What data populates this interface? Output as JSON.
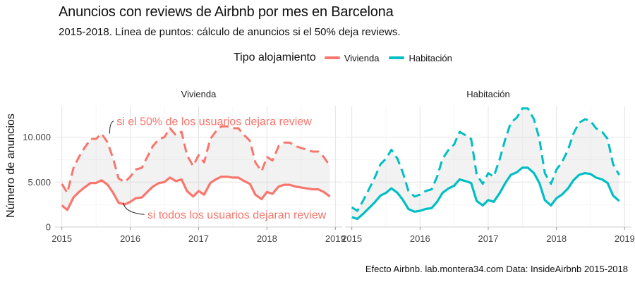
{
  "title": "Anuncios con reviews de Airbnb por mes en Barcelona",
  "subtitle": "2015-2018. Línea de puntos: cálculo de anuncios si el 50% deja reviews.",
  "caption": "Efecto Airbnb. lab.montera34.com Data: InsideAirbnb 2015-2018",
  "legend": {
    "title": "Tipo alojamiento",
    "items": [
      {
        "label": "Vivienda",
        "color": "#F8766D"
      },
      {
        "label": "Habitación",
        "color": "#00BFC4"
      }
    ]
  },
  "chart_data": {
    "type": "line",
    "ylabel": "Número de anuncios",
    "xlabel": "",
    "ylim": [
      0,
      13500
    ],
    "xlim": [
      2014.9,
      2019.1
    ],
    "y_ticks": [
      0,
      5000,
      10000
    ],
    "y_tick_labels": [
      "0",
      "5.000",
      "10.000"
    ],
    "x_ticks": [
      2015,
      2016,
      2017,
      2018,
      2019
    ],
    "x_tick_labels": [
      "2015",
      "2016",
      "2017",
      "2018",
      "2019"
    ],
    "grid": true,
    "legend_position": "top",
    "facets": [
      {
        "label": "Vivienda",
        "color": "#F8766D",
        "x": [
          2015.0,
          2015.08,
          2015.17,
          2015.25,
          2015.33,
          2015.42,
          2015.5,
          2015.58,
          2015.67,
          2015.75,
          2015.83,
          2015.92,
          2016.0,
          2016.08,
          2016.17,
          2016.25,
          2016.33,
          2016.42,
          2016.5,
          2016.58,
          2016.67,
          2016.75,
          2016.83,
          2016.92,
          2017.0,
          2017.08,
          2017.17,
          2017.25,
          2017.33,
          2017.42,
          2017.5,
          2017.58,
          2017.67,
          2017.75,
          2017.83,
          2017.92,
          2018.0,
          2018.08,
          2018.17,
          2018.25,
          2018.33,
          2018.42,
          2018.5,
          2018.58,
          2018.67,
          2018.75,
          2018.83,
          2018.92
        ],
        "series": [
          {
            "name": "Vivienda",
            "values": [
              2400,
              1900,
              3300,
              3900,
              4400,
              4900,
              4900,
              5200,
              4700,
              3800,
              2700,
              2500,
              2800,
              3200,
              3300,
              3900,
              4500,
              4900,
              5000,
              5500,
              5100,
              5300,
              4000,
              3400,
              4000,
              3600,
              4900,
              5300,
              5600,
              5600,
              5500,
              5500,
              5100,
              4800,
              3600,
              3100,
              3900,
              3700,
              4500,
              4700,
              4700,
              4500,
              4400,
              4300,
              4200,
              4200,
              3900,
              3400
            ]
          },
          {
            "name": "si el 50% dejara review",
            "values": [
              4800,
              3800,
              6600,
              7800,
              8800,
              9800,
              9800,
              10400,
              9400,
              7600,
              5400,
              5000,
              5600,
              6400,
              6600,
              7800,
              9000,
              9800,
              10000,
              11000,
              10200,
              10600,
              8000,
              6800,
              8000,
              7200,
              9800,
              10600,
              11200,
              11200,
              11000,
              11000,
              10200,
              9600,
              7200,
              6200,
              7800,
              7400,
              9000,
              9400,
              9400,
              9000,
              8800,
              8600,
              8400,
              8400,
              7800,
              6800
            ]
          }
        ]
      },
      {
        "label": "Habitación",
        "color": "#00BFC4",
        "x": [
          2015.0,
          2015.08,
          2015.17,
          2015.25,
          2015.33,
          2015.42,
          2015.5,
          2015.58,
          2015.67,
          2015.75,
          2015.83,
          2015.92,
          2016.0,
          2016.08,
          2016.17,
          2016.25,
          2016.33,
          2016.42,
          2016.5,
          2016.58,
          2016.67,
          2016.75,
          2016.83,
          2016.92,
          2017.0,
          2017.08,
          2017.17,
          2017.25,
          2017.33,
          2017.42,
          2017.5,
          2017.58,
          2017.67,
          2017.75,
          2017.83,
          2017.92,
          2018.0,
          2018.08,
          2018.17,
          2018.25,
          2018.33,
          2018.42,
          2018.5,
          2018.58,
          2018.67,
          2018.75,
          2018.83,
          2018.92
        ],
        "series": [
          {
            "name": "Habitación",
            "values": [
              1100,
              900,
              1500,
              2100,
              2700,
              3500,
              3800,
              4300,
              3800,
              3000,
              2000,
              1700,
              1800,
              2000,
              2100,
              2800,
              3800,
              4300,
              4600,
              5300,
              5100,
              4900,
              2900,
              2400,
              3000,
              2800,
              3800,
              4900,
              5800,
              6100,
              6600,
              6600,
              6000,
              4900,
              3000,
              2400,
              3200,
              3600,
              4300,
              5200,
              5800,
              6000,
              5900,
              5500,
              5300,
              4900,
              3500,
              2900
            ]
          },
          {
            "name": "si el 50% dejara review",
            "values": [
              2200,
              1800,
              3000,
              4200,
              5400,
              7000,
              7600,
              8600,
              7600,
              6000,
              4000,
              3400,
              3600,
              4000,
              4200,
              5600,
              7600,
              8600,
              9200,
              10600,
              10200,
              9800,
              5800,
              4800,
              6000,
              5600,
              7600,
              9800,
              11600,
              12200,
              13200,
              13200,
              12000,
              9800,
              6000,
              4800,
              6400,
              7200,
              8600,
              10400,
              11600,
              12000,
              11800,
              11000,
              10600,
              9800,
              7000,
              5800
            ]
          }
        ]
      }
    ],
    "annotations": [
      {
        "facet": "Vivienda",
        "text": "si el 50% de los usuarios dejara review",
        "x": 2015.8,
        "y": 11800,
        "target_x": 2015.7,
        "target_y": 10400
      },
      {
        "facet": "Vivienda",
        "text": "si todos los usuarios dejaran review",
        "x": 2016.25,
        "y": 1400,
        "target_x": 2015.9,
        "target_y": 2700
      }
    ]
  }
}
